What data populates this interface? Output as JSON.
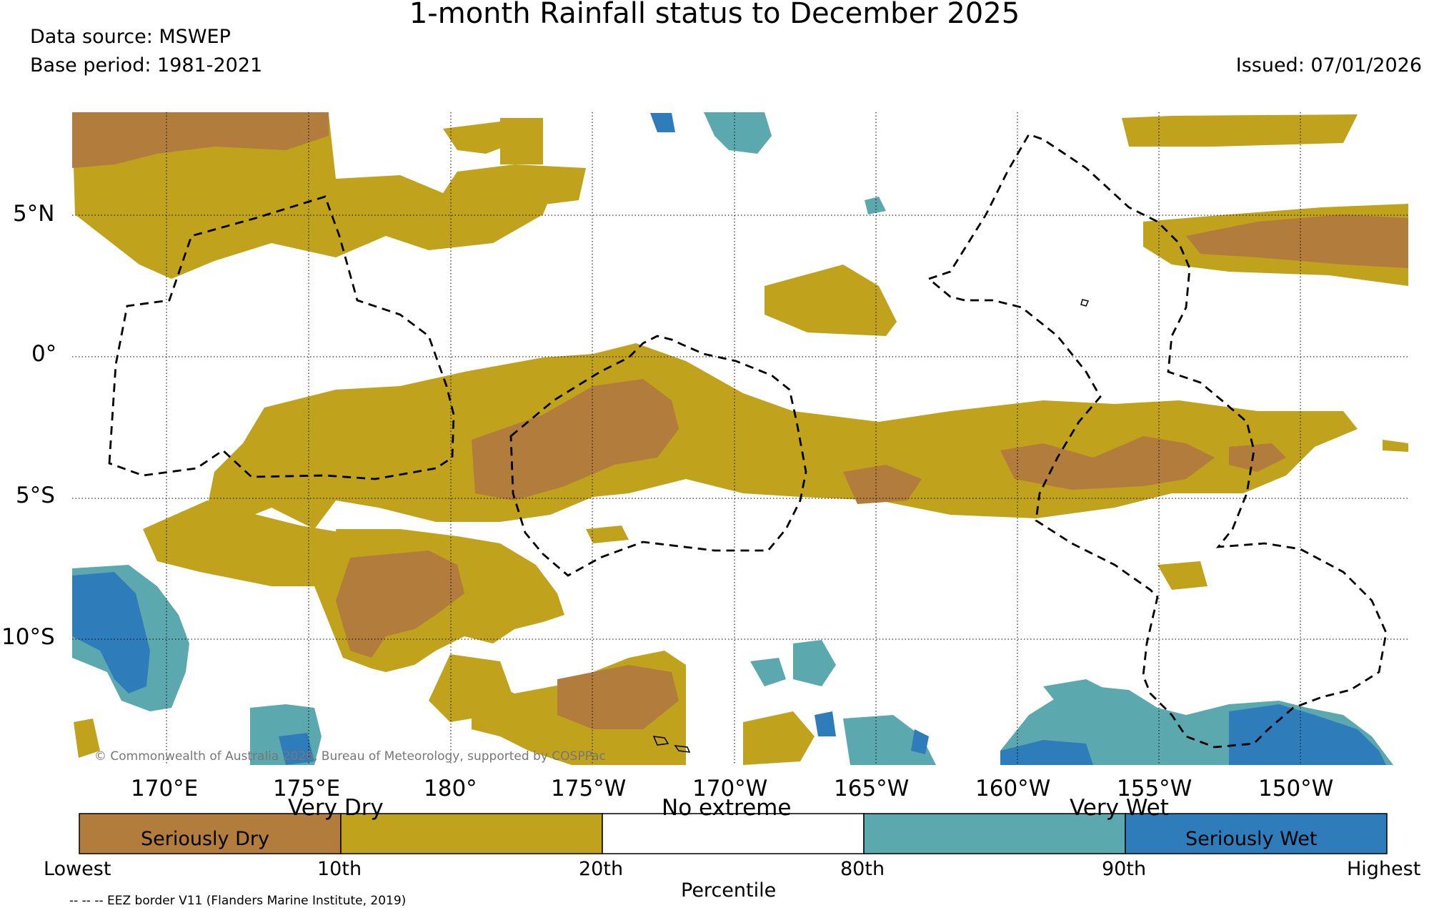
{
  "title": "1-month Rainfall status to December 2025",
  "data_source": "Data source: MSWEP",
  "base_period": "Base period: 1981-2021",
  "issued": "Issued: 07/01/2026",
  "copyright": "© Commonwealth of Australia 2026, Bureau of Meteorology, supported by COSPPac",
  "map": {
    "lat_labels": [
      "5°N",
      "0°",
      "5°S",
      "10°S"
    ],
    "lon_labels": [
      "170°E",
      "175°E",
      "180°",
      "175°W",
      "170°W",
      "165°W",
      "160°W",
      "155°W",
      "150°W"
    ]
  },
  "legend": {
    "categories": [
      {
        "label": "Seriously Dry",
        "color": "#b27c3c"
      },
      {
        "label": "",
        "color": "#c0a21c"
      },
      {
        "label": "",
        "color": "#ffffff"
      },
      {
        "label": "",
        "color": "#5ba9ae"
      },
      {
        "label": "Seriously Wet",
        "color": "#2e7dba"
      }
    ],
    "upper_labels": [
      "Very Dry",
      "No extreme",
      "Very Wet"
    ],
    "percentile_ticks": [
      "Lowest",
      "10th",
      "20th",
      "80th",
      "90th",
      "Highest"
    ],
    "axis_title": "Percentile"
  },
  "eez_note": "-- -- -- EEZ border V11 (Flanders Marine Institute, 2019)",
  "colors": {
    "seriously_dry": "#b27c3c",
    "very_dry": "#c0a21c",
    "very_wet": "#5ba9ae",
    "seriously_wet": "#2e7dba"
  }
}
